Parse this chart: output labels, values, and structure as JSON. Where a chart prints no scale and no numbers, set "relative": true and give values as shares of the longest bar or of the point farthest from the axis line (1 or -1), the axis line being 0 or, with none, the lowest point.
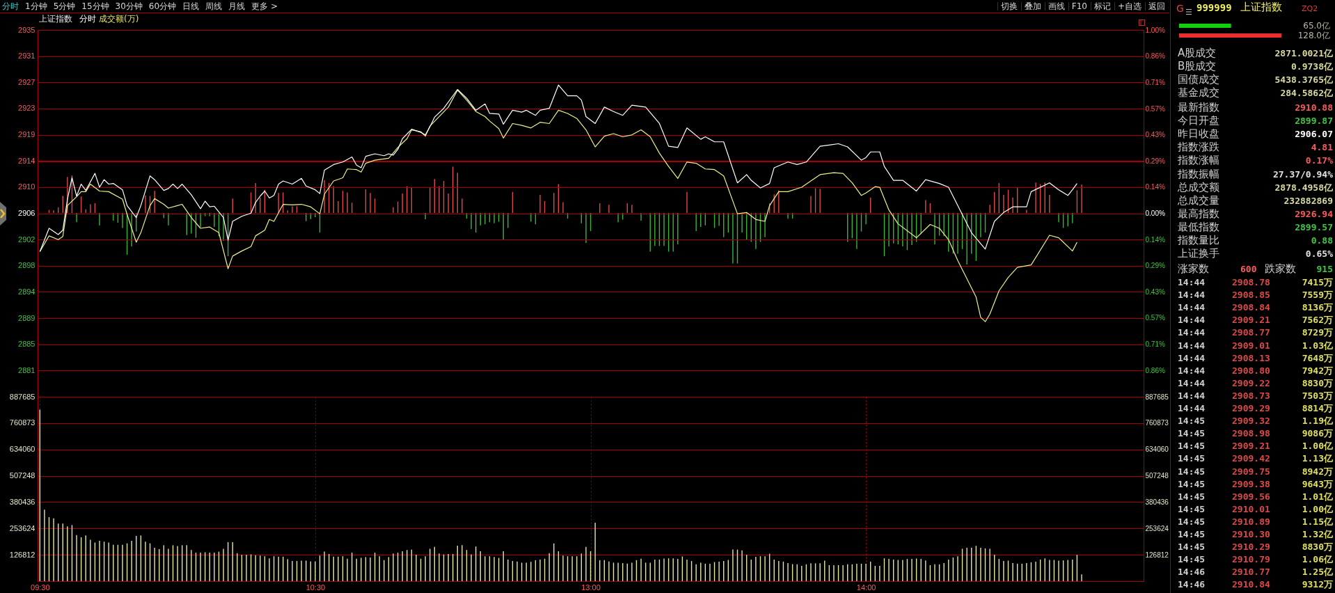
{
  "chart_data": [
    {
      "type": "other",
      "annotations": [
        "分时",
        "1分钟",
        "5分钟",
        "15分钟",
        "30分钟",
        "60分钟",
        "日线",
        "周线",
        "月线",
        "更多 >",
        "切换",
        "叠加",
        "画线",
        "F10",
        "标记",
        "+自选",
        "返回"
      ]
    },
    {
      "type": "line",
      "title": "上证指数",
      "subtitle": "分时",
      "annotations": [
        "成交额(万)"
      ],
      "categories": [
        null,
        null,
        null,
        null,
        null,
        null,
        null,
        null,
        null,
        null,
        null,
        null,
        null,
        null,
        null,
        null,
        null,
        null,
        null,
        null,
        null,
        null,
        null,
        null,
        null,
        null,
        null,
        null,
        null,
        null,
        null,
        null,
        null,
        null,
        null,
        null,
        null,
        null,
        null,
        null,
        null,
        null,
        null,
        null,
        null,
        null,
        null,
        null,
        null,
        null,
        null,
        null,
        null,
        null,
        null,
        null,
        null,
        null,
        null,
        null,
        null,
        null,
        null,
        null,
        null,
        null,
        null,
        null,
        null,
        null,
        null,
        null,
        null,
        null,
        null,
        null,
        null,
        null,
        null,
        null,
        null,
        null,
        null,
        null,
        null,
        null,
        null,
        null,
        null,
        null,
        null,
        null,
        null,
        null,
        null,
        null,
        null,
        null,
        null,
        null,
        null,
        null,
        null,
        null,
        null,
        null,
        null,
        null,
        null,
        null,
        null,
        null,
        null,
        null,
        null,
        null,
        null,
        null,
        null,
        null,
        null,
        null,
        null,
        null,
        null,
        null,
        null,
        null,
        null,
        null,
        null,
        null,
        null,
        null,
        null,
        null,
        null,
        null,
        null,
        null,
        null,
        null,
        null,
        null,
        null,
        null,
        null,
        null,
        null,
        null,
        null,
        null,
        null,
        null,
        null,
        null,
        null,
        null,
        null,
        null,
        null,
        null,
        null,
        null,
        null,
        null,
        null,
        null,
        null,
        null,
        null,
        null,
        null,
        null,
        null,
        null,
        null,
        null,
        null,
        null,
        null,
        null,
        null,
        null,
        null,
        null,
        null,
        null,
        null,
        null,
        null,
        null,
        null,
        null,
        null,
        null,
        null,
        null,
        null,
        null,
        null,
        null,
        null,
        null,
        null,
        null,
        null,
        null,
        null,
        null,
        null,
        null,
        null,
        null,
        null,
        null,
        null,
        null,
        null,
        null,
        null,
        null,
        null,
        null,
        null,
        null,
        null,
        null,
        null,
        null,
        null,
        null,
        null,
        null,
        null,
        null,
        null,
        null,
        null,
        null,
        null
      ],
      "ylim": [
        2877.01,
        2935.13
      ],
      "yticks": [
        {
          "value": 2877.01,
          "label": null
        },
        {
          "value": 2881.16,
          "label": "2881"
        },
        {
          "value": 2885.31,
          "label": "2885"
        },
        {
          "value": 2889.46,
          "label": "2889"
        },
        {
          "value": 2893.62,
          "label": "2894"
        },
        {
          "value": 2897.77,
          "label": "2898"
        },
        {
          "value": 2901.92,
          "label": "2902"
        },
        {
          "value": 2906.07,
          "label": "2906"
        },
        {
          "value": 2910.22,
          "label": "2910"
        },
        {
          "value": 2914.37,
          "label": "2914"
        },
        {
          "value": 2918.52,
          "label": "2919"
        },
        {
          "value": 2922.68,
          "label": "2923"
        },
        {
          "value": 2926.83,
          "label": "2927"
        },
        {
          "value": 2930.98,
          "label": "2931"
        },
        {
          "value": 2935.13,
          "label": "2935"
        }
      ],
      "y2lim": [
        -1,
        1
      ],
      "y2ticks": [
        {
          "value": -1,
          "label": null
        },
        {
          "value": -0.857,
          "label": "0.86%"
        },
        {
          "value": -0.714,
          "label": "0.71%"
        },
        {
          "value": -0.571,
          "label": "0.57%"
        },
        {
          "value": -0.429,
          "label": "0.43%"
        },
        {
          "value": -0.286,
          "label": "0.29%"
        },
        {
          "value": -0.143,
          "label": "0.14%"
        },
        {
          "value": 0,
          "label": "0.00%"
        },
        {
          "value": 0.143,
          "label": "0.14%"
        },
        {
          "value": 0.286,
          "label": "0.29%"
        },
        {
          "value": 0.429,
          "label": "0.43%"
        },
        {
          "value": 0.571,
          "label": "0.57%"
        },
        {
          "value": 0.714,
          "label": "0.71%"
        },
        {
          "value": 0.857,
          "label": "0.86%"
        },
        {
          "value": 1,
          "label": "1.00%"
        }
      ],
      "tick_labels": "y",
      "grid": "y",
      "series": [
        {
          "color": "#ffffff",
          "values": [
            2900.0,
            null,
            2903.7,
            null,
            2902.7,
            2903.4,
            2908.3,
            2911.7,
            2908.8,
            2910.7,
            2909.7,
            null,
            2912.4,
            2910.2,
            2911.4,
            2910.7,
            2910.8,
            null,
            2909.8,
            2907.3,
            null,
            2905.4,
            2907.3,
            null,
            2912.0,
            2911.4,
            null,
            2909.7,
            2910.0,
            2910.7,
            2910.0,
            2910.7,
            null,
            2909.0,
            null,
            2906.8,
            2908.0,
            2907.1,
            2907.2,
            null,
            2905.4,
            2901.8,
            2904.8,
            null,
            2905.6,
            null,
            2906.1,
            2907.8,
            2908.8,
            2909.6,
            2908.5,
            2908.9,
            2910.7,
            2911.2,
            null,
            2910.7,
            null,
            2911.6,
            2910.4,
            null,
            2909.8,
            2909.2,
            2912.9,
            null,
            2913.8,
            null,
            2914.2,
            null,
            2915.0,
            2913.7,
            2913.3,
            2915.1,
            null,
            2915.5,
            null,
            2915.2,
            2915.5,
            2915.3,
            2916.2,
            2917.9,
            null,
            2919.4,
            null,
            2918.9,
            2918.5,
            2919.8,
            2921.3,
            null,
            2922.7,
            null,
            null,
            2925.7,
            null,
            2924.3,
            null,
            2922.4,
            null,
            2923.4,
            2921.9,
            null,
            2921.8,
            2920.2,
            null,
            2922.4,
            null,
            2922.1,
            2922.4,
            null,
            2921.6,
            2922.4,
            null,
            2922.7,
            null,
            2926.4,
            null,
            2924.7,
            null,
            2924.7,
            2924.0,
            2921.4,
            null,
            2920.3,
            null,
            2922.9,
            null,
            2922.2,
            null,
            2921.6,
            null,
            2923.2,
            null,
            null,
            2922.9,
            null,
            null,
            2920.3,
            null,
            2916.7,
            null,
            2916.5,
            null,
            2919.6,
            null,
            null,
            2917.8,
            2918.2,
            null,
            2917.4,
            null,
            2917.4,
            null,
            null,
            2910.9,
            null,
            2912.2,
            2911.3,
            null,
            2910.1,
            null,
            2910.8,
            2913.3,
            null,
            null,
            2914.2,
            null,
            2913.8,
            null,
            2914.2,
            null,
            null,
            2916.7,
            null,
            2916.9,
            null,
            2917.1,
            null,
            2916.6,
            null,
            null,
            2914.5,
            2914.9,
            2915.8,
            null,
            2915.8,
            2913.5,
            null,
            2911.3,
            null,
            2911.3,
            null,
            null,
            2909.6,
            null,
            2911.4,
            null,
            null,
            2910.8,
            null,
            2910.2,
            null,
            2907.3,
            null,
            null,
            2903.0,
            null,
            null,
            2900.4,
            null,
            2904.8,
            null,
            2906.2,
            null,
            2907.1,
            null,
            null,
            2907.1,
            2909.5,
            null,
            null,
            null,
            2910.9,
            null,
            2909.8,
            null,
            2908.9,
            2909.8,
            2910.8,
            null,
            null,
            null,
            null,
            null,
            null,
            null,
            null,
            null,
            null,
            null,
            null,
            null,
            null
          ]
        },
        {
          "color": "#f0f08c",
          "values": [
            2900.0,
            null,
            2902.5,
            null,
            2901.9,
            2902.4,
            2907.3,
            null,
            2908.7,
            2909.5,
            2909.5,
            2910.7,
            null,
            2909.6,
            null,
            2909.5,
            null,
            null,
            2908.3,
            2905.9,
            null,
            2901.5,
            2903.0,
            null,
            2907.3,
            2908.4,
            null,
            2907.5,
            2906.9,
            null,
            2907.3,
            2907.5,
            null,
            2905.4,
            null,
            2903.7,
            null,
            2903.9,
            null,
            2903.0,
            null,
            2897.3,
            2899.3,
            null,
            2900.1,
            null,
            2900.8,
            2902.5,
            null,
            2903.4,
            2905.1,
            2904.8,
            null,
            2907.5,
            null,
            2907.4,
            null,
            2907.5,
            null,
            2907.1,
            null,
            2906.0,
            2909.1,
            null,
            2911.2,
            null,
            2911.7,
            2913.1,
            null,
            2913.0,
            2912.6,
            2914.0,
            null,
            2914.5,
            null,
            null,
            2914.8,
            null,
            2916.5,
            null,
            2917.9,
            2919.3,
            null,
            2919.0,
            2918.3,
            2919.9,
            null,
            null,
            null,
            2922.9,
            null,
            2925.6,
            null,
            2924.0,
            null,
            2922.2,
            null,
            2921.4,
            2920.7,
            null,
            2919.5,
            2918.0,
            null,
            2920.3,
            null,
            2920.0,
            null,
            2919.6,
            null,
            2920.5,
            null,
            2920.3,
            null,
            2922.4,
            null,
            2921.9,
            null,
            2921.1,
            null,
            2919.3,
            null,
            2916.6,
            null,
            2918.3,
            null,
            2918.7,
            null,
            2918.2,
            null,
            2918.5,
            null,
            2919.3,
            null,
            2918.2,
            null,
            2915.6,
            null,
            2913.5,
            null,
            2911.6,
            null,
            2914.2,
            null,
            2914.0,
            null,
            2913.1,
            null,
            2913.0,
            null,
            2912.0,
            null,
            null,
            2906.0,
            null,
            2906.2,
            null,
            2905.1,
            null,
            2904.8,
            2907.3,
            null,
            2909.5,
            null,
            2909.5,
            null,
            null,
            2910.2,
            null,
            null,
            null,
            2912.2,
            null,
            null,
            2912.5,
            null,
            2912.4,
            null,
            2910.9,
            null,
            2908.9,
            2909.3,
            null,
            2910.3,
            2910.2,
            null,
            2906.6,
            null,
            2904.4,
            null,
            null,
            null,
            2902.2,
            null,
            null,
            2904.3,
            null,
            2903.7,
            null,
            2901.9,
            null,
            2898.6,
            null,
            null,
            null,
            2892.8,
            2889.6,
            2888.9,
            2890.1,
            null,
            2893.8,
            null,
            2895.9,
            null,
            2897.5,
            null,
            null,
            2897.9,
            null,
            null,
            null,
            2902.6,
            null,
            2902.2,
            null,
            null,
            2900.1,
            2901.5,
            null,
            null,
            null,
            null,
            null,
            null,
            null,
            null,
            null,
            null,
            null,
            null,
            null,
            null
          ]
        }
      ]
    },
    {
      "type": "bar",
      "relative": true,
      "tick_labels": false,
      "categories": [
        null,
        null,
        null,
        null,
        null,
        null,
        null,
        null,
        null,
        null,
        null,
        null,
        null,
        null,
        null,
        null,
        null,
        null,
        null,
        null,
        null,
        null,
        null,
        null,
        null,
        null,
        null,
        null,
        null,
        null,
        null,
        null,
        null,
        null,
        null,
        null,
        null,
        null,
        null,
        null,
        null,
        null,
        null,
        null,
        null,
        null,
        null,
        null,
        null,
        null,
        null,
        null,
        null,
        null,
        null,
        null,
        null,
        null,
        null,
        null,
        null,
        null,
        null,
        null,
        null,
        null,
        null,
        null,
        null,
        null,
        null,
        null,
        null,
        null,
        null,
        null,
        null,
        null,
        null,
        null,
        null,
        null,
        null,
        null,
        null,
        null,
        null,
        null,
        null,
        null,
        null,
        null,
        null,
        null,
        null,
        null,
        null,
        null,
        null,
        null,
        null,
        null,
        null,
        null,
        null,
        null,
        null,
        null,
        null,
        null,
        null,
        null,
        null,
        null,
        null,
        null,
        null,
        null,
        null,
        null,
        null,
        null,
        null,
        null,
        null,
        null,
        null,
        null,
        null,
        null,
        null,
        null,
        null,
        null,
        null,
        null,
        null,
        null,
        null,
        null,
        null,
        null,
        null,
        null,
        null,
        null,
        null,
        null,
        null,
        null,
        null,
        null,
        null,
        null,
        null,
        null,
        null,
        null,
        null,
        null,
        null,
        null,
        null,
        null,
        null,
        null,
        null,
        null,
        null,
        null,
        null,
        null,
        null,
        null,
        null,
        null,
        null,
        null,
        null,
        null,
        null,
        null,
        null,
        null,
        null,
        null,
        null,
        null,
        null,
        null,
        null,
        null,
        null,
        null,
        null,
        null,
        null,
        null,
        null,
        null,
        null,
        null,
        null,
        null,
        null,
        null,
        null,
        null,
        null,
        null,
        null,
        null,
        null,
        null,
        null,
        null,
        null,
        null,
        null,
        null,
        null,
        null,
        null,
        null,
        null,
        null,
        null,
        null,
        null,
        null,
        null,
        null,
        null,
        null,
        null,
        null,
        null,
        null,
        null,
        null,
        null
      ],
      "series": [
        {
          "color": "#e04848",
          "values": [
            null,
            null,
            0.06,
            0.05,
            0.11,
            0.33,
            0.7,
            0.73,
            null,
            0.32,
            0.07,
            0.17,
            0.19,
            null,
            null,
            null,
            null,
            null,
            null,
            null,
            null,
            null,
            null,
            0.34,
            0.33,
            0.43,
            null,
            null,
            null,
            null,
            null,
            null,
            null,
            null,
            null,
            null,
            null,
            null,
            null,
            null,
            null,
            null,
            0.28,
            null,
            null,
            null,
            0.4,
            0.58,
            0.3,
            0.45,
            null,
            null,
            0.39,
            0.4,
            0.05,
            0.13,
            0.13,
            null,
            null,
            null,
            null,
            null,
            0.64,
            0.58,
            0.52,
            0.23,
            0.43,
            0.4,
            0.2,
            null,
            null,
            0.46,
            0.39,
            0.28,
            null,
            null,
            null,
            0.11,
            0.22,
            0.38,
            0.52,
            0.49,
            null,
            null,
            null,
            0.49,
            0.66,
            0.52,
            0.62,
            0.38,
            0.9,
            0.78,
            0.28,
            null,
            null,
            null,
            null,
            null,
            null,
            null,
            null,
            null,
            null,
            0.41,
            null,
            null,
            null,
            null,
            null,
            0.35,
            0.23,
            null,
            0.39,
            0.56,
            0.21,
            null,
            null,
            null,
            null,
            null,
            null,
            null,
            0.19,
            null,
            0.16,
            null,
            null,
            null,
            0.19,
            0.16,
            null,
            null,
            null,
            null,
            null,
            null,
            null,
            null,
            null,
            null,
            null,
            0.41,
            null,
            null,
            null,
            null,
            null,
            null,
            null,
            null,
            null,
            null,
            null,
            null,
            null,
            null,
            null,
            null,
            null,
            0.19,
            0.36,
            0.44,
            null,
            null,
            null,
            null,
            null,
            null,
            0.33,
            0.48,
            0.47,
            null,
            null,
            null,
            null,
            null,
            null,
            null,
            null,
            null,
            null,
            0.3,
            null,
            null,
            null,
            null,
            null,
            null,
            null,
            null,
            null,
            null,
            null,
            0.25,
            0.19,
            null,
            null,
            null,
            null,
            null,
            null,
            null,
            null,
            null,
            null,
            null,
            null,
            0.16,
            0.41,
            0.58,
            0.35,
            0.45,
            0.3,
            0.5,
            null,
            0.06,
            null,
            0.59,
            0.56,
            0.59,
            0.35,
            null,
            null,
            null,
            null,
            null,
            0.44,
            0.55,
            null,
            null,
            null,
            null,
            null,
            null,
            null,
            null,
            null,
            null,
            null,
            null,
            null
          ]
        },
        {
          "color": "#3cb43c",
          "values": [
            null,
            null,
            null,
            null,
            null,
            null,
            null,
            null,
            -0.18,
            null,
            null,
            null,
            null,
            -0.24,
            null,
            null,
            -0.15,
            -0.19,
            -0.29,
            -0.81,
            -0.65,
            -0.36,
            null,
            null,
            null,
            null,
            null,
            -0.1,
            -0.24,
            null,
            null,
            null,
            -0.43,
            -0.4,
            -0.48,
            -0.27,
            -0.06,
            -0.06,
            -0.27,
            -0.45,
            -0.54,
            -0.84,
            null,
            null,
            null,
            null,
            null,
            null,
            null,
            null,
            null,
            null,
            null,
            null,
            null,
            null,
            null,
            null,
            -0.16,
            -0.12,
            -0.08,
            -0.38,
            null,
            null,
            null,
            null,
            null,
            null,
            null,
            null,
            null,
            null,
            null,
            null,
            null,
            null,
            null,
            null,
            null,
            null,
            null,
            null,
            null,
            null,
            -0.12,
            null,
            null,
            null,
            null,
            null,
            null,
            null,
            null,
            -0.11,
            -0.31,
            -0.38,
            -0.24,
            -0.22,
            -0.18,
            -0.2,
            -0.17,
            -0.52,
            -0.29,
            null,
            null,
            null,
            null,
            -0.17,
            -0.22,
            null,
            null,
            null,
            null,
            null,
            null,
            -0.11,
            null,
            null,
            -0.2,
            -0.58,
            -0.35,
            null,
            null,
            null,
            null,
            null,
            -0.18,
            -0.13,
            null,
            null,
            null,
            -0.15,
            null,
            -0.75,
            -0.64,
            -0.64,
            -0.64,
            -0.75,
            -0.75,
            -0.61,
            null,
            null,
            null,
            -0.35,
            -0.27,
            -0.24,
            null,
            -0.29,
            -0.25,
            -0.47,
            -0.38,
            -0.98,
            -0.98,
            -0.38,
            -0.52,
            -0.56,
            -0.7,
            -0.56,
            -0.47,
            null,
            null,
            null,
            null,
            -0.11,
            -0.11,
            null,
            null,
            null,
            null,
            null,
            null,
            null,
            null,
            null,
            null,
            null,
            -0.56,
            -0.49,
            -0.7,
            -0.36,
            -0.22,
            null,
            null,
            null,
            -0.84,
            -0.65,
            -0.59,
            -0.61,
            -0.65,
            -0.72,
            -0.62,
            -0.56,
            -0.41,
            null,
            null,
            -0.61,
            -0.44,
            -0.45,
            -0.75,
            -0.79,
            -0.79,
            -0.7,
            -1.0,
            -0.79,
            -0.93,
            -0.47,
            -0.38,
            null,
            null,
            null,
            null,
            null,
            null,
            null,
            null,
            null,
            null,
            null,
            null,
            null,
            null,
            null,
            -0.18,
            -0.29,
            -0.26,
            -0.2,
            null,
            null,
            null,
            null,
            null,
            null,
            null,
            null,
            null,
            null,
            null,
            null,
            null,
            null,
            null
          ]
        }
      ]
    },
    {
      "type": "bar",
      "color": "#e6e6a8",
      "grid": true,
      "categories": [
        "09:30",
        null,
        null,
        null,
        null,
        null,
        null,
        null,
        null,
        null,
        null,
        null,
        null,
        null,
        null,
        null,
        null,
        null,
        null,
        null,
        null,
        null,
        null,
        null,
        null,
        null,
        null,
        null,
        null,
        null,
        null,
        null,
        null,
        null,
        null,
        null,
        null,
        null,
        null,
        null,
        null,
        null,
        null,
        null,
        null,
        null,
        null,
        null,
        null,
        null,
        null,
        null,
        null,
        null,
        null,
        null,
        null,
        null,
        null,
        null,
        "10:30",
        null,
        null,
        null,
        null,
        null,
        null,
        null,
        null,
        null,
        null,
        null,
        null,
        null,
        null,
        null,
        null,
        null,
        null,
        null,
        null,
        null,
        null,
        null,
        null,
        null,
        null,
        null,
        null,
        null,
        null,
        null,
        null,
        null,
        null,
        null,
        null,
        null,
        null,
        null,
        null,
        null,
        null,
        null,
        null,
        null,
        null,
        null,
        null,
        null,
        null,
        null,
        null,
        null,
        null,
        null,
        null,
        null,
        null,
        null,
        "13:00",
        null,
        null,
        null,
        null,
        null,
        null,
        null,
        null,
        null,
        null,
        null,
        null,
        null,
        null,
        null,
        null,
        null,
        null,
        null,
        null,
        null,
        null,
        null,
        null,
        null,
        null,
        null,
        null,
        null,
        null,
        null,
        null,
        null,
        null,
        null,
        null,
        null,
        null,
        null,
        null,
        null,
        null,
        null,
        null,
        null,
        null,
        null,
        null,
        null,
        null,
        null,
        null,
        null,
        null,
        null,
        null,
        null,
        null,
        null,
        "14:00",
        null,
        null,
        null,
        null,
        null,
        null,
        null,
        null,
        null,
        null,
        null,
        null,
        null,
        null,
        null,
        null,
        null,
        null,
        null,
        null,
        null,
        null,
        null,
        null,
        null,
        null,
        null,
        null,
        null,
        null,
        null,
        null,
        null,
        null,
        null,
        null,
        null,
        null,
        null,
        null,
        null,
        null,
        null,
        null,
        null,
        null,
        null,
        null,
        null,
        null,
        null,
        null,
        null,
        null,
        null,
        null,
        null,
        null,
        null,
        null
      ],
      "values": [
        826000,
        344000,
        308000,
        302000,
        277000,
        277000,
        264000,
        270000,
        222000,
        211000,
        220000,
        199000,
        186000,
        194000,
        190000,
        186000,
        175000,
        175000,
        175000,
        182000,
        194000,
        218000,
        220000,
        190000,
        182000,
        161000,
        154000,
        173000,
        156000,
        173000,
        169000,
        173000,
        173000,
        150000,
        137000,
        137000,
        139000,
        137000,
        137000,
        142000,
        156000,
        188000,
        188000,
        135000,
        127000,
        127000,
        129000,
        125000,
        123000,
        120000,
        110000,
        120000,
        118000,
        118000,
        106000,
        97000,
        97000,
        99000,
        99000,
        95000,
        95000,
        123000,
        142000,
        131000,
        118000,
        118000,
        120000,
        108000,
        137000,
        108000,
        112000,
        116000,
        114000,
        137000,
        120000,
        101000,
        116000,
        133000,
        137000,
        144000,
        150000,
        152000,
        127000,
        108000,
        120000,
        156000,
        165000,
        133000,
        129000,
        131000,
        131000,
        171000,
        173000,
        150000,
        129000,
        167000,
        144000,
        120000,
        120000,
        116000,
        112000,
        144000,
        104000,
        97000,
        95000,
        89000,
        89000,
        93000,
        101000,
        104000,
        108000,
        135000,
        182000,
        144000,
        123000,
        120000,
        120000,
        120000,
        133000,
        165000,
        144000,
        281000,
        101000,
        101000,
        95000,
        89000,
        89000,
        87000,
        85000,
        89000,
        101000,
        108000,
        89000,
        89000,
        104000,
        104000,
        109000,
        110000,
        110000,
        107000,
        119000,
        104000,
        97000,
        81000,
        89000,
        84000,
        84000,
        92000,
        94000,
        97000,
        102000,
        152000,
        152000,
        148000,
        127000,
        104000,
        117000,
        120000,
        120000,
        132000,
        104000,
        97000,
        94000,
        87000,
        82000,
        81000,
        74000,
        81000,
        86000,
        86000,
        86000,
        99000,
        77000,
        77000,
        77000,
        77000,
        81000,
        81000,
        84000,
        84000,
        84000,
        94000,
        74000,
        74000,
        110000,
        107000,
        104000,
        102000,
        102000,
        107000,
        107000,
        109000,
        107000,
        100000,
        77000,
        81000,
        81000,
        87000,
        104000,
        114000,
        120000,
        156000,
        161000,
        161000,
        170000,
        161000,
        158000,
        156000,
        127000,
        107000,
        97000,
        99000,
        87000,
        84000,
        84000,
        87000,
        91000,
        94000,
        104000,
        110000,
        102000,
        102000,
        99000,
        100000,
        102000,
        104000,
        127000,
        33000,
        null,
        null,
        null,
        null,
        null,
        null,
        null,
        null,
        null,
        null,
        null,
        null,
        null
      ],
      "ylim": [
        0,
        887685
      ],
      "yticks": [
        {
          "value": 0,
          "label": null
        },
        126812,
        253624,
        380436,
        507248,
        634060,
        760873,
        887685
      ],
      "y2lim": [
        0,
        887685
      ],
      "y2ticks": [
        {
          "value": 0,
          "label": null
        },
        126812,
        253624,
        380436,
        507248,
        634060,
        760873,
        887685
      ]
    },
    {
      "type": "bar",
      "orientation": "horizontal",
      "categories": [
        null,
        null
      ],
      "values": [
        65.0,
        128.0
      ],
      "colors": [
        "#10d010",
        "#e83030"
      ],
      "value_labels": [
        "65.0亿",
        "128.0亿"
      ]
    },
    {
      "type": "other",
      "annotations": [
        "G",
        "999999",
        "上证指数",
        "ZQ2",
        "A股成交",
        "2871.0021亿",
        "B股成交",
        "0.9738亿",
        "国债成交",
        "5438.3765亿",
        "基金成交",
        "284.5862亿",
        "最新指数",
        "2910.88",
        "今日开盘",
        "2899.87",
        "昨日收盘",
        "2906.07",
        "指数涨跌",
        "4.81",
        "指数涨幅",
        "0.17%",
        "指数振幅",
        "27.37/0.94%",
        "总成交额",
        "2878.4958亿",
        "总成交量",
        "232882869",
        "最高指数",
        "2926.94",
        "最低指数",
        "2899.57",
        "指数量比",
        "0.88",
        "上证换手",
        "0.65%",
        "涨家数",
        "600",
        "跌家数",
        "915",
        "14:44",
        "2908.78",
        "7415万",
        "14:44",
        "2908.85",
        "7559万",
        "14:44",
        "2908.84",
        "8136万",
        "14:44",
        "2909.21",
        "7562万",
        "14:44",
        "2908.77",
        "8729万",
        "14:44",
        "2909.01",
        "1.03亿",
        "14:44",
        "2908.13",
        "7648万",
        "14:44",
        "2908.80",
        "7942万",
        "14:44",
        "2909.22",
        "8830万",
        "14:44",
        "2908.73",
        "7503万",
        "14:44",
        "2909.29",
        "8814万",
        "14:45",
        "2909.32",
        "1.19亿",
        "14:45",
        "2908.98",
        "9086万",
        "14:45",
        "2909.21",
        "1.00亿",
        "14:45",
        "2909.42",
        "1.13亿",
        "14:45",
        "2909.75",
        "8942万",
        "14:45",
        "2909.38",
        "9643万",
        "14:45",
        "2909.56",
        "1.01亿",
        "14:45",
        "2910.01",
        "1.00亿",
        "14:45",
        "2910.89",
        "1.15亿",
        "14:45",
        "2910.30",
        "1.32亿",
        "14:45",
        "2910.29",
        "8830万",
        "14:45",
        "2910.79",
        "1.06亿",
        "14:46",
        "2910.77",
        "1.25亿",
        "14:46",
        "2910.84",
        "9312万"
      ]
    }
  ]
}
